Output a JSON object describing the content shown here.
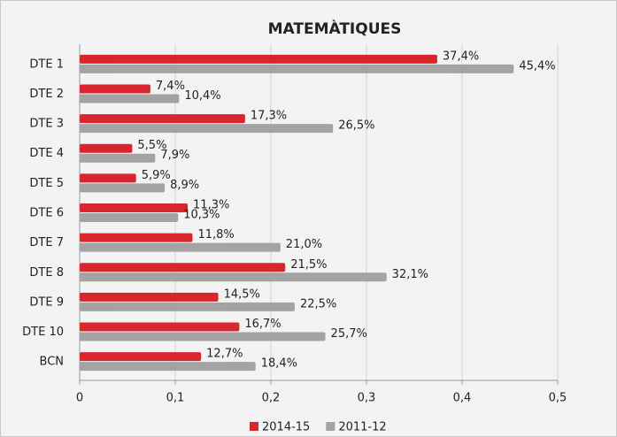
{
  "chart_data": {
    "type": "hbar",
    "title": "MATEMÀTIQUES",
    "categories": [
      "DTE 1",
      "DTE 2",
      "DTE 3",
      "DTE 4",
      "DTE 5",
      "DTE 6",
      "DTE 7",
      "DTE 8",
      "DTE 9",
      "DTE 10",
      "BCN"
    ],
    "series": [
      {
        "name": "2014-15",
        "color": "#d7262c",
        "values": [
          0.374,
          0.074,
          0.173,
          0.055,
          0.059,
          0.113,
          0.118,
          0.215,
          0.145,
          0.167,
          0.127
        ],
        "value_labels": [
          "37,4%",
          "7,4%",
          "17,3%",
          "5,5%",
          "5,9%",
          "11,3%",
          "11,8%",
          "21,5%",
          "14,5%",
          "16,7%",
          "12,7%"
        ]
      },
      {
        "name": "2011-12",
        "color": "#a3a3a3",
        "values": [
          0.454,
          0.104,
          0.265,
          0.079,
          0.089,
          0.103,
          0.21,
          0.321,
          0.225,
          0.257,
          0.184
        ],
        "value_labels": [
          "45,4%",
          "10,4%",
          "26,5%",
          "7,9%",
          "8,9%",
          "10,3%",
          "21,0%",
          "32,1%",
          "22,5%",
          "25,7%",
          "18,4%"
        ]
      }
    ],
    "xlim": [
      0,
      0.5
    ],
    "xticks": [
      0,
      {
        "value": 0.1,
        "label": "0,1"
      },
      {
        "value": 0.2,
        "label": "0,2"
      },
      {
        "value": 0.3,
        "label": "0,3"
      },
      {
        "value": 0.4,
        "label": "0,4"
      },
      {
        "value": 0.5,
        "label": "0,5"
      }
    ],
    "grid": true,
    "legend": "bottom"
  }
}
